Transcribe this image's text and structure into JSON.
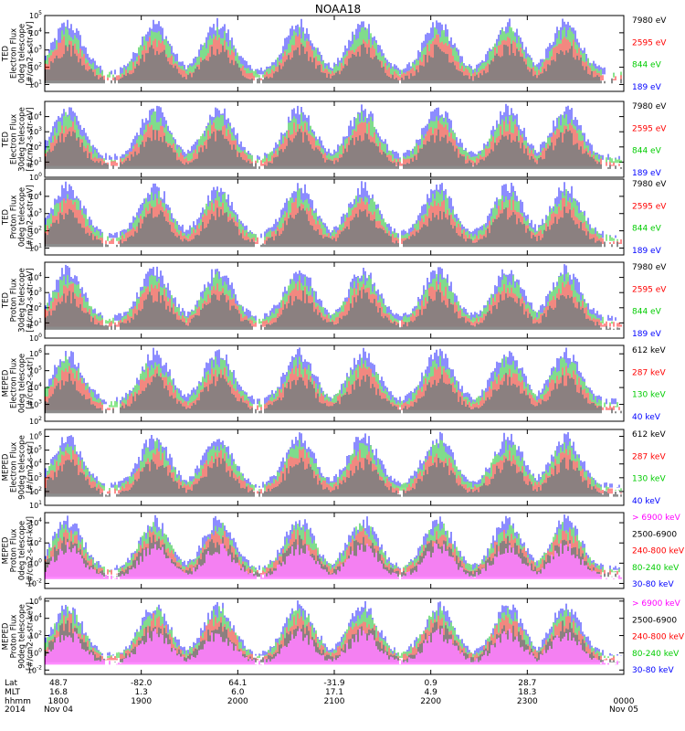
{
  "chart_data": {
    "type": "line",
    "title": "NOAA18",
    "panels": [
      {
        "ylabel": "TED\nElectron Flux\n0deg telescope\n[#/cm2-s-str-eV]",
        "ytick_exponents": [
          1,
          2,
          3,
          4,
          5
        ],
        "ylim_exp": [
          0.6,
          5
        ],
        "series": [
          {
            "name": "7980 eV",
            "color": "#000000"
          },
          {
            "name": "2595 eV",
            "color": "#ff0000"
          },
          {
            "name": "844 eV",
            "color": "#00cc00"
          },
          {
            "name": "189 eV",
            "color": "#0000ff"
          }
        ]
      },
      {
        "ylabel": "TED\nElectron Flux\n30deg telescope\n[#/cm2-s-str-eV]",
        "ytick_exponents": [
          0,
          1,
          2,
          3,
          4
        ],
        "ylim_exp": [
          0,
          5
        ],
        "series": [
          {
            "name": "7980 eV",
            "color": "#000000"
          },
          {
            "name": "2595 eV",
            "color": "#ff0000"
          },
          {
            "name": "844 eV",
            "color": "#00cc00"
          },
          {
            "name": "189 eV",
            "color": "#0000ff"
          }
        ]
      },
      {
        "ylabel": "TED\nProton Flux\n0deg telescope\n[#/cm2-s-str-eV]",
        "ytick_exponents": [
          1,
          2,
          3,
          4
        ],
        "ylim_exp": [
          0.6,
          5
        ],
        "series": [
          {
            "name": "7980 eV",
            "color": "#000000"
          },
          {
            "name": "2595 eV",
            "color": "#ff0000"
          },
          {
            "name": "844 eV",
            "color": "#00cc00"
          },
          {
            "name": "189 eV",
            "color": "#0000ff"
          }
        ]
      },
      {
        "ylabel": "TED\nProton Flux\n30deg telescope\n[#/cm2-s-str-eV]",
        "ytick_exponents": [
          0,
          1,
          2,
          3,
          4
        ],
        "ylim_exp": [
          0,
          5
        ],
        "series": [
          {
            "name": "7980 eV",
            "color": "#000000"
          },
          {
            "name": "2595 eV",
            "color": "#ff0000"
          },
          {
            "name": "844 eV",
            "color": "#00cc00"
          },
          {
            "name": "189 eV",
            "color": "#0000ff"
          }
        ]
      },
      {
        "ylabel": "MEPED\nElectron Flux\n0deg telescope\n[#/cm2-s-str]",
        "ytick_exponents": [
          2,
          3,
          4,
          5,
          6
        ],
        "ylim_exp": [
          2,
          6.5
        ],
        "series": [
          {
            "name": "612 keV",
            "color": "#000000"
          },
          {
            "name": "287 keV",
            "color": "#ff0000"
          },
          {
            "name": "130 keV",
            "color": "#00cc00"
          },
          {
            "name": "40 keV",
            "color": "#0000ff"
          }
        ]
      },
      {
        "ylabel": "MEPED\nElectron Flux\n90deg telescope\n[#/cm2-s-str]",
        "ytick_exponents": [
          1,
          2,
          3,
          4,
          5,
          6
        ],
        "ylim_exp": [
          1,
          6.5
        ],
        "series": [
          {
            "name": "612 keV",
            "color": "#000000"
          },
          {
            "name": "287 keV",
            "color": "#ff0000"
          },
          {
            "name": "130 keV",
            "color": "#00cc00"
          },
          {
            "name": "40 keV",
            "color": "#0000ff"
          }
        ]
      },
      {
        "ylabel": "MEPED\nProton Flux\n0deg telescope\n[#/cm2-s-str-keV]",
        "ytick_exponents": [
          -2,
          0,
          2,
          4
        ],
        "ylim_exp": [
          -2.5,
          5
        ],
        "series": [
          {
            "name": "> 6900 keV",
            "color": "#ff00ff"
          },
          {
            "name": "2500-6900",
            "color": "#000000"
          },
          {
            "name": "240-800 keV",
            "color": "#ff0000"
          },
          {
            "name": "80-240 keV",
            "color": "#00cc00"
          },
          {
            "name": "30-80 keV",
            "color": "#0000ff"
          }
        ]
      },
      {
        "ylabel": "MEPED\nProton Flux\n90deg telescope\n[#/cm2-s-str-keV]",
        "ytick_exponents": [
          -2,
          0,
          2,
          4,
          6
        ],
        "ylim_exp": [
          -2.5,
          6.3
        ],
        "series": [
          {
            "name": "> 6900 keV",
            "color": "#ff00ff"
          },
          {
            "name": "2500-6900",
            "color": "#000000"
          },
          {
            "name": "240-800 keV",
            "color": "#ff0000"
          },
          {
            "name": "80-240 keV",
            "color": "#00cc00"
          },
          {
            "name": "30-80 keV",
            "color": "#0000ff"
          }
        ]
      }
    ],
    "x_axis": {
      "row_labels": [
        "Lat",
        "MLT",
        "hhmm",
        "2014"
      ],
      "ticks": [
        {
          "lat": "48.7",
          "mlt": "16.8",
          "hhmm": "1800",
          "date": "Nov 04"
        },
        {
          "lat": "-82.0",
          "mlt": "1.3",
          "hhmm": "1900",
          "date": ""
        },
        {
          "lat": "64.1",
          "mlt": "6.0",
          "hhmm": "2000",
          "date": ""
        },
        {
          "lat": "-31.9",
          "mlt": "17.1",
          "hhmm": "2100",
          "date": ""
        },
        {
          "lat": "0.9",
          "mlt": "4.9",
          "hhmm": "2200",
          "date": ""
        },
        {
          "lat": "28.7",
          "mlt": "18.3",
          "hhmm": "2300",
          "date": ""
        },
        {
          "lat": "",
          "mlt": "",
          "hhmm": "0000",
          "date": "Nov 05"
        }
      ]
    }
  }
}
